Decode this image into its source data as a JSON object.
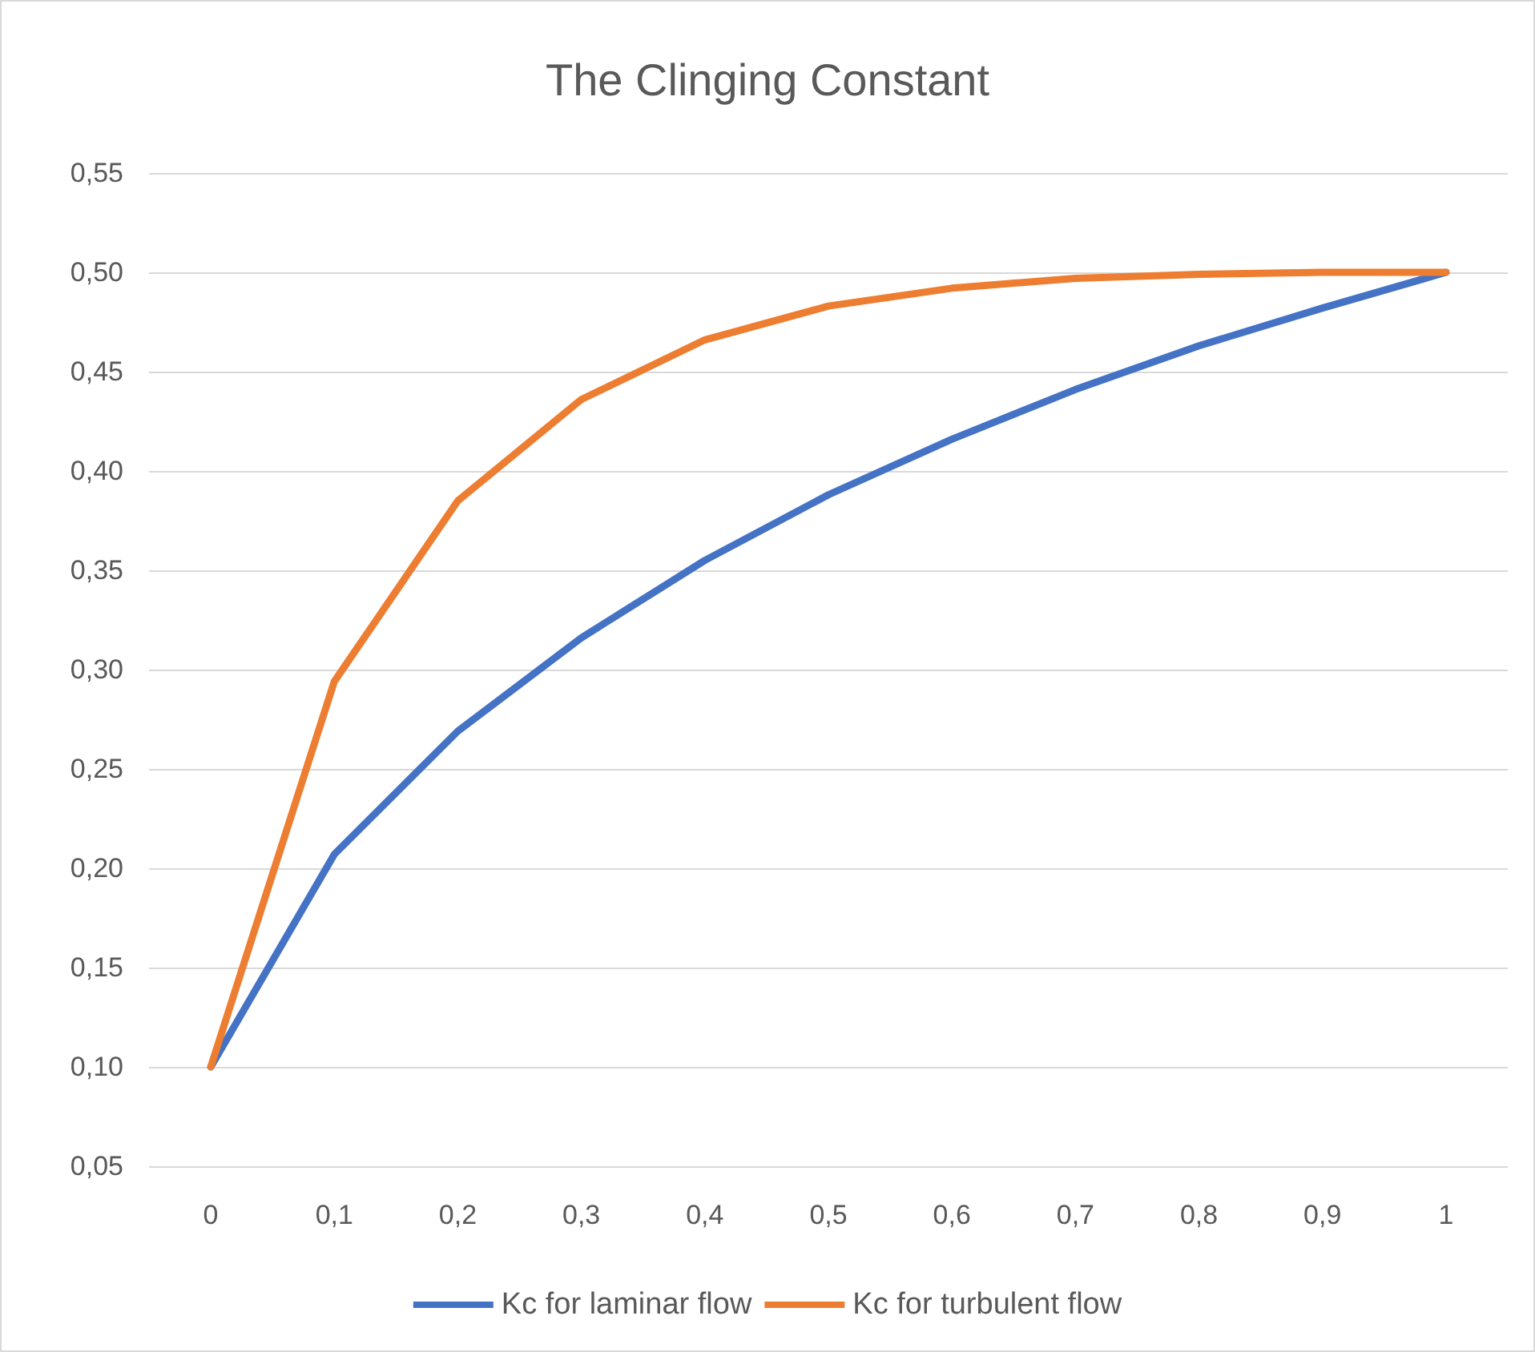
{
  "chart_data": {
    "type": "line",
    "title": "The Clinging Constant",
    "categories": [
      "0",
      "0,1",
      "0,2",
      "0,3",
      "0,4",
      "0,5",
      "0,6",
      "0,7",
      "0,8",
      "0,9",
      "1"
    ],
    "series": [
      {
        "name": "Kc for laminar flow",
        "color": "#4472c4",
        "values": [
          0.1,
          0.207,
          0.269,
          0.316,
          0.355,
          0.388,
          0.416,
          0.441,
          0.463,
          0.482,
          0.5
        ]
      },
      {
        "name": "Kc for turbulent flow",
        "color": "#ed7d31",
        "values": [
          0.1,
          0.294,
          0.385,
          0.436,
          0.466,
          0.483,
          0.492,
          0.497,
          0.499,
          0.5,
          0.5
        ]
      }
    ],
    "ylim": [
      0.05,
      0.55
    ],
    "yticks": [
      {
        "value": 0.05,
        "label": "0,05"
      },
      {
        "value": 0.1,
        "label": "0,10"
      },
      {
        "value": 0.15,
        "label": "0,15"
      },
      {
        "value": 0.2,
        "label": "0,20"
      },
      {
        "value": 0.25,
        "label": "0,25"
      },
      {
        "value": 0.3,
        "label": "0,30"
      },
      {
        "value": 0.35,
        "label": "0,35"
      },
      {
        "value": 0.4,
        "label": "0,40"
      },
      {
        "value": 0.45,
        "label": "0,45"
      },
      {
        "value": 0.5,
        "label": "0,50"
      },
      {
        "value": 0.55,
        "label": "0,55"
      }
    ],
    "grid": "y",
    "legend": "bottom",
    "marker": "none",
    "line_style": "solid"
  }
}
